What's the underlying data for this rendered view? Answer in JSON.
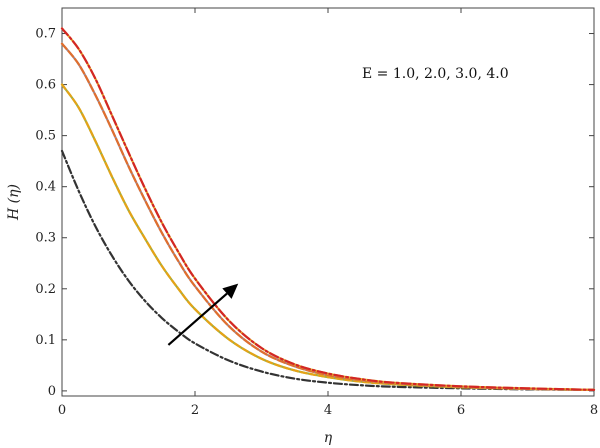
{
  "chart_data": {
    "type": "line",
    "title": "",
    "xlabel": "η",
    "ylabel": "H (η)",
    "xlim": [
      0,
      8
    ],
    "ylim": [
      -0.01,
      0.75
    ],
    "xticks": [
      0,
      2,
      4,
      6,
      8
    ],
    "yticks": [
      0,
      0.1,
      0.2,
      0.3,
      0.4,
      0.5,
      0.6,
      0.7
    ],
    "grid": false,
    "legend": "none",
    "annotation": "E = 1.0, 2.0, 3.0, 4.0",
    "arrow": {
      "from": [
        1.6,
        0.09
      ],
      "to": [
        2.65,
        0.21
      ]
    },
    "x": [
      0,
      0.25,
      0.5,
      0.75,
      1,
      1.25,
      1.5,
      1.75,
      2,
      2.5,
      3,
      3.5,
      4,
      4.5,
      5,
      6,
      7,
      8
    ],
    "series": [
      {
        "color": "#333333",
        "dash": "8,3,2,3",
        "values": [
          0.47,
          0.392,
          0.323,
          0.265,
          0.216,
          0.176,
          0.143,
          0.116,
          0.093,
          0.06,
          0.038,
          0.024,
          0.016,
          0.011,
          0.008,
          0.005,
          0.003,
          0.002
        ]
      },
      {
        "color": "#8BB14A",
        "dash": "",
        "values": [
          0.6,
          0.555,
          0.49,
          0.42,
          0.354,
          0.298,
          0.245,
          0.2,
          0.16,
          0.102,
          0.063,
          0.04,
          0.027,
          0.018,
          0.013,
          0.007,
          0.004,
          0.002
        ]
      },
      {
        "color": "#E5A317",
        "dash": "6,3",
        "values": [
          0.6,
          0.555,
          0.49,
          0.42,
          0.354,
          0.298,
          0.245,
          0.2,
          0.16,
          0.102,
          0.063,
          0.04,
          0.027,
          0.018,
          0.013,
          0.007,
          0.004,
          0.002
        ]
      },
      {
        "color": "#9A8A9C",
        "dash": "",
        "values": [
          0.68,
          0.64,
          0.58,
          0.512,
          0.44,
          0.373,
          0.31,
          0.254,
          0.205,
          0.128,
          0.077,
          0.048,
          0.031,
          0.021,
          0.015,
          0.008,
          0.004,
          0.002
        ]
      },
      {
        "color": "#E06F2E",
        "dash": "7,3",
        "values": [
          0.68,
          0.64,
          0.58,
          0.512,
          0.44,
          0.373,
          0.31,
          0.254,
          0.205,
          0.128,
          0.077,
          0.048,
          0.031,
          0.021,
          0.015,
          0.008,
          0.004,
          0.002
        ]
      },
      {
        "color": "#E6BC2E",
        "dash": "",
        "values": [
          0.71,
          0.67,
          0.612,
          0.54,
          0.467,
          0.396,
          0.33,
          0.272,
          0.22,
          0.139,
          0.084,
          0.052,
          0.034,
          0.023,
          0.016,
          0.009,
          0.005,
          0.002
        ]
      },
      {
        "color": "#D32626",
        "dash": "9,3,2,3",
        "values": [
          0.71,
          0.67,
          0.612,
          0.54,
          0.467,
          0.396,
          0.33,
          0.272,
          0.22,
          0.139,
          0.084,
          0.052,
          0.034,
          0.023,
          0.016,
          0.009,
          0.005,
          0.002
        ]
      }
    ]
  }
}
